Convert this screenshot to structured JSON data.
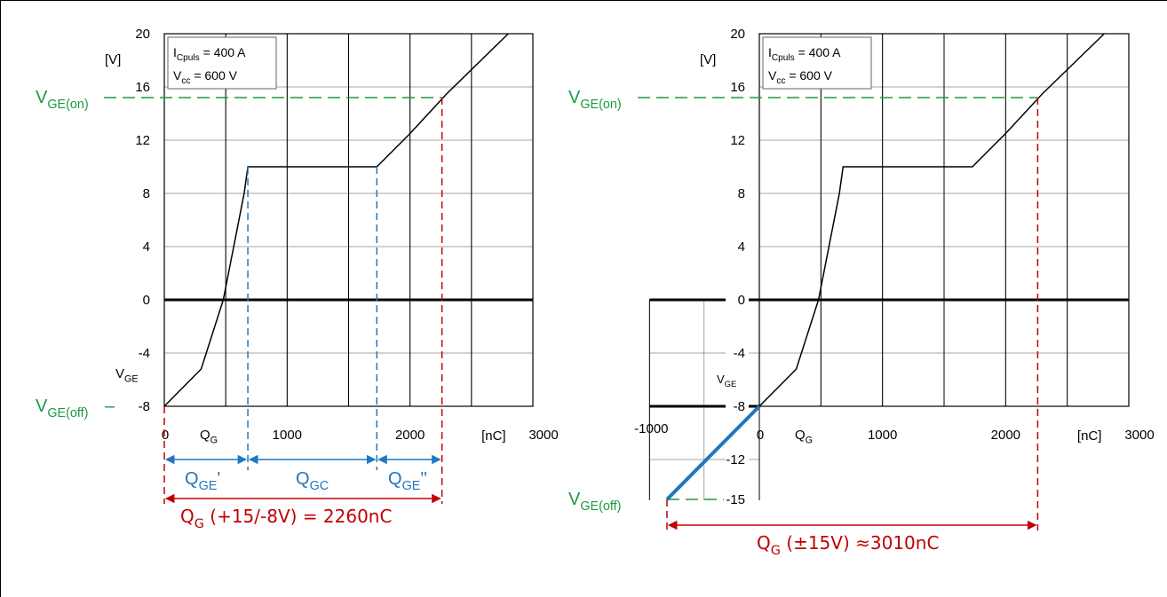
{
  "colors": {
    "green": "#1a9b43",
    "blue": "#1f77c0",
    "red": "#c00000",
    "axis": "#000000",
    "grid": "#000000"
  },
  "chart_data": [
    {
      "type": "line",
      "ylabel_unit": "[V]",
      "xlabel": "Q",
      "xlabel_sub": "G",
      "x_unit": "[nC]",
      "ylabel": "V",
      "ylabel_sub": "GE",
      "xlim": [
        0,
        3000
      ],
      "ylim": [
        -8,
        20
      ],
      "x_ticks": [
        "0",
        "1000",
        "2000",
        "3000"
      ],
      "y_ticks": [
        "20",
        "16",
        "12",
        "8",
        "4",
        "0",
        "-4",
        "-8"
      ],
      "legend": {
        "line1_main": "I",
        "line1_sub": "Cpuls",
        "line1_rest": " = 400 A",
        "line2_main": "V",
        "line2_sub": "cc",
        "line2_rest": "  = 600 V"
      },
      "series": [
        {
          "x": [
            0,
            300,
            480,
            650,
            680,
            1730,
            2000,
            2300,
            2800
          ],
          "y": [
            -8,
            -5.2,
            0,
            8,
            10,
            10,
            12.5,
            15.5,
            20
          ]
        }
      ],
      "annotations": {
        "vge_on_main": "V",
        "vge_on_sub": "GE(on)",
        "vge_on_value": 15.2,
        "vge_off_main": "V",
        "vge_off_sub": "GE(off)",
        "vge_off_dash": "–",
        "q_ge1_main": "Q",
        "q_ge1_sub": "GE",
        "q_ge1_mark": "'",
        "q_gc_main": "Q",
        "q_gc_sub": "GC",
        "q_ge2_main": "Q",
        "q_ge2_sub": "GE",
        "q_ge2_mark": "''",
        "q_ge1_end": 680,
        "q_gc_end": 1730,
        "q_total_end": 2260,
        "total_main": "Q",
        "total_sub": "G",
        "total_rest": " (+15/-8V) = 2260nC"
      }
    },
    {
      "type": "line",
      "ylabel_unit": "[V]",
      "xlabel": "Q",
      "xlabel_sub": "G",
      "x_unit": "[nC]",
      "ylabel": "V",
      "ylabel_sub": "GE",
      "xlim": [
        0,
        3000
      ],
      "ylim": [
        -8,
        20
      ],
      "x_ticks": [
        "0",
        "1000",
        "2000",
        "3000"
      ],
      "y_ticks": [
        "20",
        "16",
        "12",
        "8",
        "4",
        "0",
        "-4"
      ],
      "extended_x_tick": "-1000",
      "extended_y_ticks": [
        "0",
        "-4",
        "-8",
        "-12",
        "-15"
      ],
      "legend": {
        "line1_main": "I",
        "line1_sub": "Cpuls",
        "line1_rest": " = 400 A",
        "line2_main": "V",
        "line2_sub": "cc",
        "line2_rest": "  = 600 V"
      },
      "series": [
        {
          "x": [
            0,
            300,
            480,
            650,
            680,
            1730,
            2000,
            2300,
            2800
          ],
          "y": [
            -8,
            -5.2,
            0,
            8,
            10,
            10,
            12.5,
            15.5,
            20
          ]
        },
        {
          "x": [
            -750,
            0
          ],
          "y": [
            -15,
            -8
          ]
        }
      ],
      "annotations": {
        "vge_on_main": "V",
        "vge_on_sub": "GE(on)",
        "vge_on_value": 15.2,
        "vge_off_main": "V",
        "vge_off_sub": "GE(off)",
        "vge_off_value": -15,
        "q_start": -750,
        "q_end": 2260,
        "total_main": "Q",
        "total_sub": "G",
        "total_rest": " (±15V) ≈3010nC"
      }
    }
  ]
}
